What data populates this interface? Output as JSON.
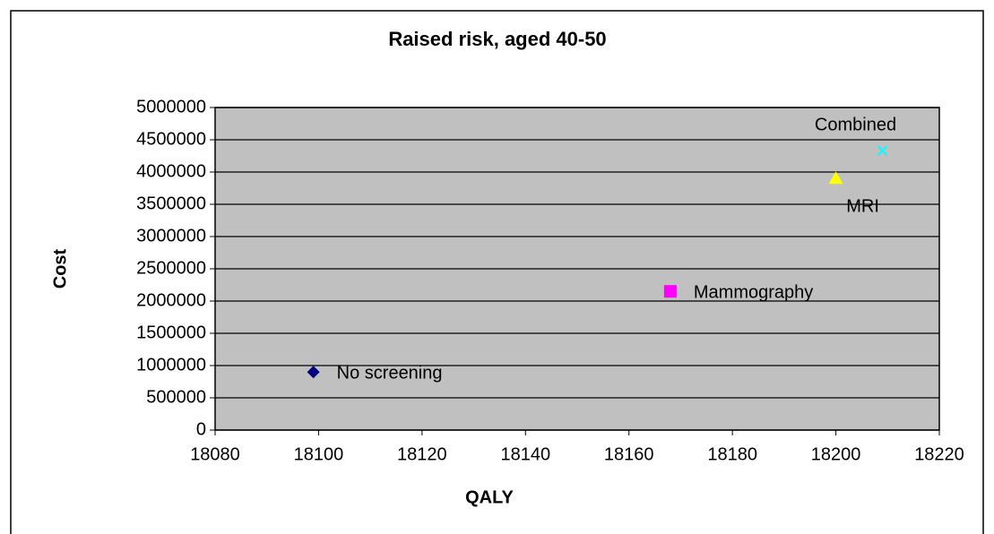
{
  "chart_data": {
    "type": "scatter",
    "title": "Raised risk, aged 40-50",
    "xlabel": "QALY",
    "ylabel": "Cost",
    "series": [
      {
        "name": "No screening",
        "color": "#000080",
        "marker": "diamond",
        "x": [
          18099
        ],
        "values": [
          900000
        ]
      },
      {
        "name": "Mammography",
        "color": "#ff00ff",
        "marker": "square",
        "x": [
          18168
        ],
        "values": [
          2150000
        ]
      },
      {
        "name": "MRI",
        "color": "#ffff00",
        "marker": "triangle",
        "x": [
          18200
        ],
        "values": [
          3900000
        ]
      },
      {
        "name": "Combined",
        "color": "#00ffff",
        "marker": "x",
        "x": [
          18209
        ],
        "values": [
          4330000
        ]
      }
    ],
    "xlim": [
      18080,
      18220
    ],
    "xticks": [
      18080,
      18100,
      18120,
      18140,
      18160,
      18180,
      18200,
      18220
    ],
    "ylim": [
      0,
      5000000
    ],
    "yticks": [
      0,
      500000,
      1000000,
      1500000,
      2000000,
      2500000,
      3000000,
      3500000,
      4000000,
      4500000,
      5000000
    ],
    "grid": true,
    "plot_background": "#c0c0c0"
  }
}
